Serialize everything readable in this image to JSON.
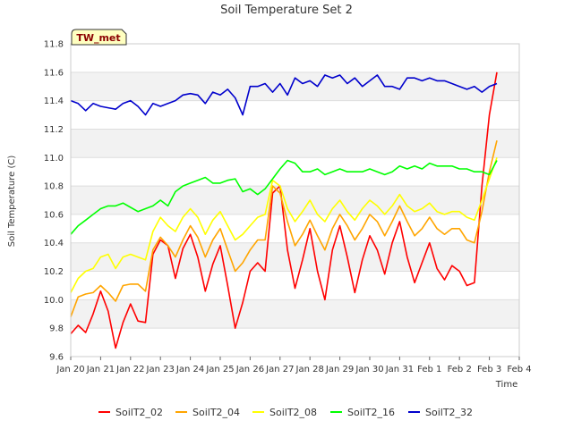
{
  "chart_data": {
    "type": "line",
    "title": "Soil Temperature Set 2",
    "xlabel": "Time",
    "ylabel": "Soil Temperature (C)",
    "badge": "TW_met",
    "ylim": [
      9.6,
      11.8
    ],
    "yticks": [
      "9.6",
      "9.8",
      "10.0",
      "10.2",
      "10.4",
      "10.6",
      "10.8",
      "11.0",
      "11.2",
      "11.4",
      "11.6",
      "11.8"
    ],
    "xlim": [
      0,
      15
    ],
    "xticks": [
      "Jan 20",
      "Jan 21",
      "Jan 22",
      "Jan 23",
      "Jan 24",
      "Jan 25",
      "Jan 26",
      "Jan 27",
      "Jan 28",
      "Jan 29",
      "Jan 30",
      "Jan 31",
      "Feb 1",
      "Feb 2",
      "Feb 3",
      "Feb 4"
    ],
    "grid": "horizontal alternating bands",
    "legend_position": "bottom",
    "x": [
      0.0,
      0.25,
      0.5,
      0.75,
      1.0,
      1.25,
      1.5,
      1.75,
      2.0,
      2.25,
      2.5,
      2.75,
      3.0,
      3.25,
      3.5,
      3.75,
      4.0,
      4.25,
      4.5,
      4.75,
      5.0,
      5.25,
      5.5,
      5.75,
      6.0,
      6.25,
      6.5,
      6.75,
      7.0,
      7.25,
      7.5,
      7.75,
      8.0,
      8.25,
      8.5,
      8.75,
      9.0,
      9.25,
      9.5,
      9.75,
      10.0,
      10.25,
      10.5,
      10.75,
      11.0,
      11.25,
      11.5,
      11.75,
      12.0,
      12.25,
      12.5,
      12.75,
      13.0,
      13.25,
      13.5,
      13.75,
      14.0,
      14.25
    ],
    "series": [
      {
        "name": "SoilT2_02",
        "color": "#ff0000",
        "values": [
          9.76,
          9.82,
          9.77,
          9.9,
          10.06,
          9.92,
          9.66,
          9.84,
          9.97,
          9.85,
          9.84,
          10.32,
          10.42,
          10.38,
          10.15,
          10.36,
          10.46,
          10.3,
          10.06,
          10.25,
          10.38,
          10.1,
          9.8,
          9.98,
          10.2,
          10.26,
          10.2,
          10.75,
          10.8,
          10.35,
          10.08,
          10.28,
          10.5,
          10.2,
          10.0,
          10.35,
          10.52,
          10.3,
          10.05,
          10.28,
          10.45,
          10.35,
          10.18,
          10.4,
          10.55,
          10.3,
          10.12,
          10.26,
          10.4,
          10.22,
          10.14,
          10.24,
          10.2,
          10.1,
          10.12,
          10.8,
          11.3,
          11.6
        ]
      },
      {
        "name": "SoilT2_04",
        "color": "#ffa500",
        "values": [
          9.88,
          10.02,
          10.04,
          10.05,
          10.1,
          10.05,
          9.99,
          10.1,
          10.11,
          10.11,
          10.06,
          10.35,
          10.44,
          10.38,
          10.3,
          10.42,
          10.52,
          10.44,
          10.3,
          10.42,
          10.5,
          10.35,
          10.2,
          10.26,
          10.35,
          10.42,
          10.42,
          10.8,
          10.75,
          10.55,
          10.38,
          10.46,
          10.56,
          10.45,
          10.35,
          10.5,
          10.6,
          10.52,
          10.42,
          10.5,
          10.6,
          10.55,
          10.45,
          10.55,
          10.66,
          10.55,
          10.45,
          10.5,
          10.58,
          10.5,
          10.46,
          10.5,
          10.5,
          10.42,
          10.4,
          10.62,
          10.9,
          11.12
        ]
      },
      {
        "name": "SoilT2_08",
        "color": "#ffff00",
        "values": [
          10.05,
          10.15,
          10.2,
          10.22,
          10.3,
          10.32,
          10.22,
          10.3,
          10.32,
          10.3,
          10.28,
          10.48,
          10.58,
          10.52,
          10.48,
          10.58,
          10.64,
          10.58,
          10.46,
          10.56,
          10.62,
          10.52,
          10.42,
          10.46,
          10.52,
          10.58,
          10.6,
          10.84,
          10.8,
          10.64,
          10.55,
          10.62,
          10.7,
          10.6,
          10.55,
          10.64,
          10.7,
          10.62,
          10.56,
          10.64,
          10.7,
          10.66,
          10.6,
          10.66,
          10.74,
          10.66,
          10.62,
          10.64,
          10.68,
          10.62,
          10.6,
          10.62,
          10.62,
          10.58,
          10.56,
          10.7,
          10.85,
          11.0
        ]
      },
      {
        "name": "SoilT2_16",
        "color": "#00ff00",
        "values": [
          10.46,
          10.52,
          10.56,
          10.6,
          10.64,
          10.66,
          10.66,
          10.68,
          10.65,
          10.62,
          10.64,
          10.66,
          10.7,
          10.66,
          10.76,
          10.8,
          10.82,
          10.84,
          10.86,
          10.82,
          10.82,
          10.84,
          10.85,
          10.76,
          10.78,
          10.74,
          10.78,
          10.85,
          10.92,
          10.98,
          10.96,
          10.9,
          10.9,
          10.92,
          10.88,
          10.9,
          10.92,
          10.9,
          10.9,
          10.9,
          10.92,
          10.9,
          10.88,
          10.9,
          10.94,
          10.92,
          10.94,
          10.92,
          10.96,
          10.94,
          10.94,
          10.94,
          10.92,
          10.92,
          10.9,
          10.9,
          10.88,
          10.98
        ]
      },
      {
        "name": "SoilT2_32",
        "color": "#0000cc",
        "values": [
          11.4,
          11.38,
          11.33,
          11.38,
          11.36,
          11.35,
          11.34,
          11.38,
          11.4,
          11.36,
          11.3,
          11.38,
          11.36,
          11.38,
          11.4,
          11.44,
          11.45,
          11.44,
          11.38,
          11.46,
          11.44,
          11.48,
          11.42,
          11.3,
          11.5,
          11.5,
          11.52,
          11.46,
          11.52,
          11.44,
          11.56,
          11.52,
          11.54,
          11.5,
          11.58,
          11.56,
          11.58,
          11.52,
          11.56,
          11.5,
          11.54,
          11.58,
          11.5,
          11.5,
          11.48,
          11.56,
          11.56,
          11.54,
          11.56,
          11.54,
          11.54,
          11.52,
          11.5,
          11.48,
          11.5,
          11.46,
          11.5,
          11.52
        ]
      }
    ]
  }
}
